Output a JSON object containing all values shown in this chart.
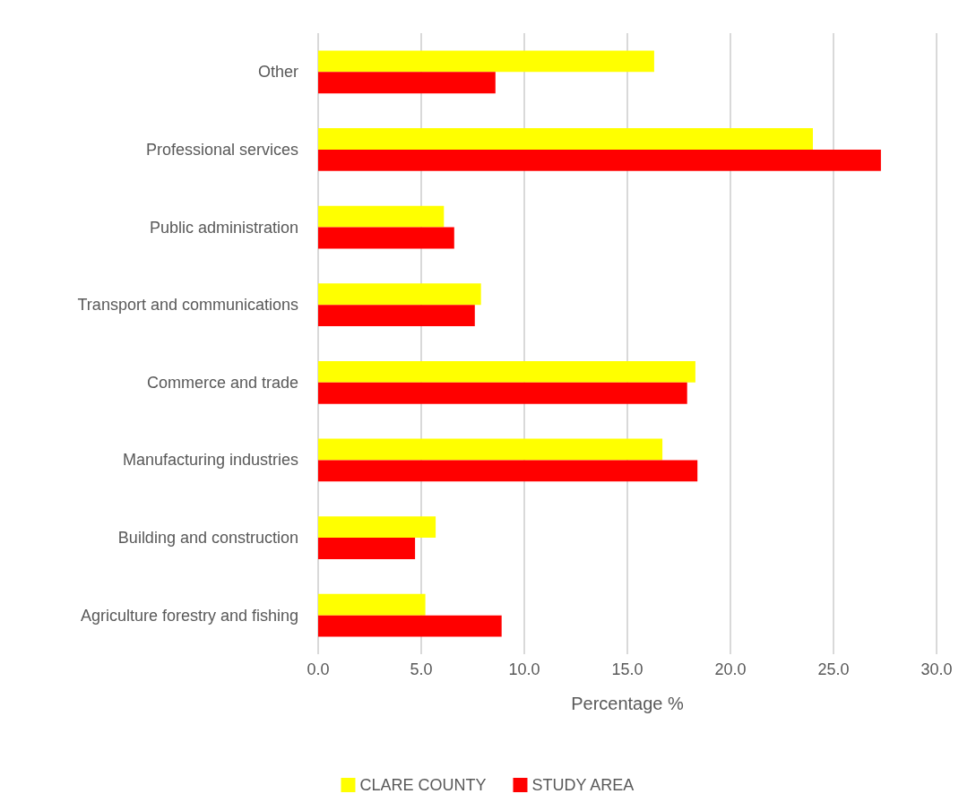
{
  "chart_data": {
    "type": "bar",
    "orientation": "horizontal",
    "xlabel": "Percentage %",
    "categories": [
      "Other",
      "Professional services",
      "Public administration",
      "Transport and communications",
      "Commerce and trade",
      "Manufacturing industries",
      "Building and construction",
      "Agriculture forestry and fishing"
    ],
    "series": [
      {
        "name": "CLARE COUNTY",
        "color": "#ffff00",
        "values": [
          16.3,
          24.0,
          6.1,
          7.9,
          18.3,
          16.7,
          5.7,
          5.2
        ]
      },
      {
        "name": "STUDY AREA",
        "color": "#ff0000",
        "values": [
          8.6,
          27.3,
          6.6,
          7.6,
          17.9,
          18.4,
          4.7,
          8.9
        ]
      }
    ],
    "xlim": [
      0,
      30
    ],
    "xticks": [
      {
        "value": 0,
        "label": "0.0"
      },
      {
        "value": 5,
        "label": "5.0"
      },
      {
        "value": 10,
        "label": "10.0"
      },
      {
        "value": 15,
        "label": "15.0"
      },
      {
        "value": 20,
        "label": "20.0"
      },
      {
        "value": 25,
        "label": "25.0"
      },
      {
        "value": 30,
        "label": "30.0"
      }
    ],
    "grid": "x",
    "legend": "bottom"
  }
}
